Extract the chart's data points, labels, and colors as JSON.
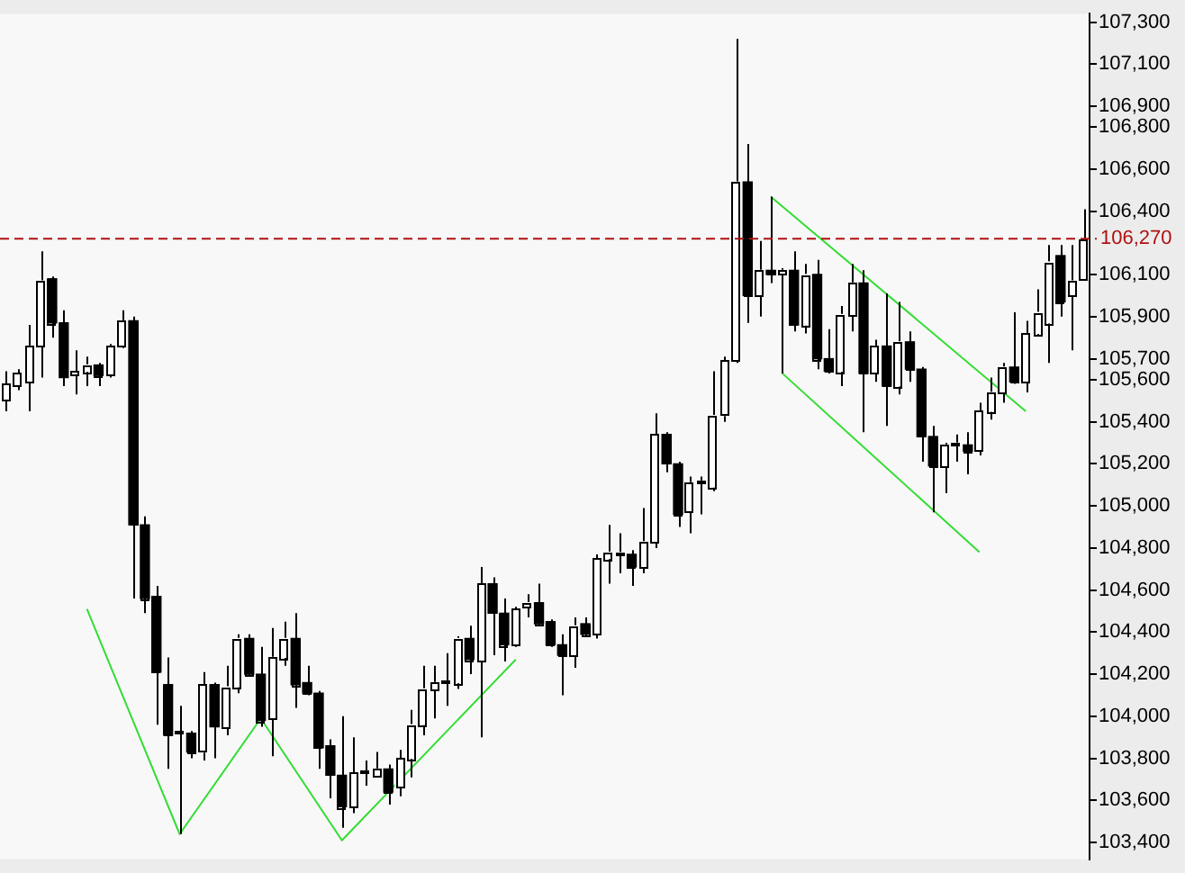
{
  "chart_data": {
    "type": "candlestick",
    "color": "#000000",
    "colors": [
      "#ffffff",
      "#ffffff",
      "#ffffff",
      "#ffffff",
      "#000000",
      "#000000",
      "#ffffff",
      "#ffffff",
      "#000000",
      "#ffffff",
      "#ffffff",
      "#000000",
      "#000000",
      "#000000",
      "#000000",
      "#ffffff",
      "#000000",
      "#ffffff",
      "#000000",
      "#ffffff",
      "#ffffff",
      "#000000",
      "#000000",
      "#ffffff",
      "#ffffff",
      "#000000",
      "#000000",
      "#000000",
      "#000000",
      "#000000",
      "#ffffff",
      "#ffffff",
      "#ffffff",
      "#000000",
      "#ffffff",
      "#ffffff",
      "#ffffff",
      "#ffffff",
      "#ffffff",
      "#ffffff",
      "#000000",
      "#ffffff",
      "#000000",
      "#000000",
      "#ffffff",
      "#ffffff",
      "#000000",
      "#000000",
      "#000000",
      "#ffffff",
      "#000000",
      "#ffffff",
      "#ffffff",
      "#ffffff",
      "#000000",
      "#ffffff",
      "#ffffff",
      "#000000",
      "#000000",
      "#ffffff",
      "#ffffff",
      "#ffffff",
      "#ffffff",
      "#ffffff",
      "#000000",
      "#ffffff",
      "#000000",
      "#ffffff",
      "#000000",
      "#ffffff",
      "#000000",
      "#000000",
      "#ffffff",
      "#ffffff",
      "#000000",
      "#ffffff",
      "#000000",
      "#ffffff",
      "#000000",
      "#000000",
      "#000000",
      "#ffffff",
      "#ffffff",
      "#000000",
      "#ffffff",
      "#ffffff",
      "#ffffff",
      "#000000",
      "#ffffff",
      "#ffffff",
      "#ffffff",
      "#000000",
      "#ffffff",
      "#ffffff"
    ],
    "categories": [
      null,
      null,
      null,
      null,
      null,
      null,
      null,
      null,
      null,
      null,
      null,
      null,
      null,
      null,
      null,
      null,
      null,
      null,
      null,
      null,
      null,
      null,
      null,
      null,
      null,
      null,
      null,
      null,
      null,
      null,
      null,
      null,
      null,
      null,
      null,
      null,
      null,
      null,
      null,
      null,
      null,
      null,
      null,
      null,
      null,
      null,
      null,
      null,
      null,
      null,
      null,
      null,
      null,
      null,
      null,
      null,
      null,
      null,
      null,
      null,
      null,
      null,
      null,
      null,
      null,
      null,
      null,
      null,
      null,
      null,
      null,
      null,
      null,
      null,
      null,
      null,
      null,
      null,
      null,
      null,
      null,
      null,
      null,
      null,
      null,
      null,
      null,
      null,
      null,
      null,
      null,
      null,
      null,
      null
    ],
    "ohlc": [
      [
        105500,
        105640,
        105450,
        105580
      ],
      [
        105570,
        105650,
        105550,
        105630
      ],
      [
        105590,
        105860,
        105450,
        105760
      ],
      [
        105760,
        106210,
        105610,
        106070
      ],
      [
        106080,
        106090,
        105800,
        105870
      ],
      [
        105870,
        105930,
        105570,
        105610
      ],
      [
        105620,
        105740,
        105530,
        105640
      ],
      [
        105640,
        105710,
        105570,
        105670
      ],
      [
        105670,
        105680,
        105570,
        105620
      ],
      [
        105620,
        105770,
        105610,
        105760
      ],
      [
        105760,
        105930,
        105750,
        105880
      ],
      [
        105880,
        105900,
        104560,
        104910
      ],
      [
        104910,
        104950,
        104490,
        104560
      ],
      [
        104570,
        104620,
        103960,
        104210
      ],
      [
        104150,
        104280,
        103750,
        103910
      ],
      [
        103920,
        104050,
        103440,
        103920
      ],
      [
        103920,
        103930,
        103800,
        103830
      ],
      [
        103830,
        104210,
        103790,
        104150
      ],
      [
        104150,
        104160,
        103800,
        103950
      ],
      [
        103950,
        104240,
        103910,
        104140
      ],
      [
        104140,
        104390,
        104110,
        104370
      ],
      [
        104370,
        104390,
        104190,
        104200
      ],
      [
        104200,
        104330,
        103950,
        103980
      ],
      [
        103990,
        104420,
        103810,
        104280
      ],
      [
        104280,
        104450,
        104240,
        104370
      ],
      [
        104370,
        104490,
        104040,
        104150
      ],
      [
        104160,
        104240,
        104100,
        104110
      ],
      [
        104110,
        104120,
        103750,
        103850
      ],
      [
        103860,
        103890,
        103610,
        103720
      ],
      [
        103720,
        104000,
        103470,
        103570
      ],
      [
        103570,
        103900,
        103540,
        103730
      ],
      [
        103730,
        103790,
        103670,
        103730
      ],
      [
        103720,
        103830,
        103710,
        103750
      ],
      [
        103750,
        103770,
        103580,
        103640
      ],
      [
        103660,
        103840,
        103620,
        103800
      ],
      [
        103800,
        104030,
        103710,
        103960
      ],
      [
        103960,
        104240,
        103910,
        104130
      ],
      [
        104130,
        104240,
        103990,
        104160
      ],
      [
        104160,
        104300,
        104050,
        104160
      ],
      [
        104160,
        104380,
        104130,
        104370
      ],
      [
        104370,
        104430,
        104200,
        104270
      ],
      [
        104260,
        104710,
        103900,
        104630
      ],
      [
        104630,
        104660,
        104290,
        104490
      ],
      [
        104490,
        104560,
        104260,
        104340
      ],
      [
        104340,
        104520,
        104330,
        104510
      ],
      [
        104520,
        104580,
        104470,
        104540
      ],
      [
        104540,
        104630,
        104430,
        104440
      ],
      [
        104450,
        104460,
        104330,
        104340
      ],
      [
        104340,
        104390,
        104100,
        104290
      ],
      [
        104290,
        104470,
        104230,
        104430
      ],
      [
        104440,
        104470,
        104380,
        104390
      ],
      [
        104390,
        104770,
        104370,
        104750
      ],
      [
        104750,
        104910,
        104630,
        104780
      ],
      [
        104770,
        104870,
        104680,
        104770
      ],
      [
        104770,
        104790,
        104620,
        104710
      ],
      [
        104710,
        104990,
        104680,
        104830
      ],
      [
        104830,
        105440,
        104800,
        105340
      ],
      [
        105340,
        105350,
        105160,
        105200
      ],
      [
        105200,
        105210,
        104900,
        104960
      ],
      [
        104970,
        105140,
        104870,
        105110
      ],
      [
        105110,
        105140,
        104960,
        105110
      ],
      [
        105090,
        105640,
        105070,
        105430
      ],
      [
        105430,
        105710,
        105400,
        105690
      ],
      [
        105690,
        107220,
        105680,
        106540
      ],
      [
        106540,
        106720,
        105870,
        106000
      ],
      [
        106000,
        106260,
        105900,
        106120
      ],
      [
        106120,
        106470,
        106060,
        106100
      ],
      [
        106100,
        106130,
        105630,
        106120
      ],
      [
        106120,
        106210,
        105830,
        105860
      ],
      [
        105860,
        106150,
        105820,
        106100
      ],
      [
        106100,
        106170,
        105650,
        105700
      ],
      [
        105700,
        105840,
        105630,
        105640
      ],
      [
        105640,
        105950,
        105570,
        105910
      ],
      [
        105910,
        106150,
        105830,
        106060
      ],
      [
        106060,
        106120,
        105350,
        105630
      ],
      [
        105630,
        105790,
        105590,
        105760
      ],
      [
        105760,
        106010,
        105380,
        105570
      ],
      [
        105570,
        105970,
        105530,
        105780
      ],
      [
        105780,
        105830,
        105590,
        105650
      ],
      [
        105650,
        105660,
        105210,
        105330
      ],
      [
        105330,
        105380,
        104970,
        105190
      ],
      [
        105190,
        105300,
        105060,
        105290
      ],
      [
        105290,
        105340,
        105210,
        105290
      ],
      [
        105290,
        105350,
        105150,
        105260
      ],
      [
        105260,
        105490,
        105240,
        105450
      ],
      [
        105450,
        105610,
        105410,
        105540
      ],
      [
        105540,
        105680,
        105490,
        105660
      ],
      [
        105660,
        105920,
        105580,
        105590
      ],
      [
        105590,
        105880,
        105540,
        105820
      ],
      [
        105820,
        106030,
        105810,
        105920
      ],
      [
        105870,
        106240,
        105680,
        106160
      ],
      [
        106190,
        106240,
        105900,
        105970
      ],
      [
        106000,
        106240,
        105740,
        106070
      ],
      [
        106080,
        106410,
        106070,
        106270
      ]
    ],
    "series": [
      {
        "type": "line",
        "color": "#33dd33",
        "values": [
          null,
          null,
          null,
          null,
          null,
          null,
          null,
          104510,
          null,
          null,
          null,
          null,
          null,
          null,
          null,
          103440,
          null,
          null,
          null,
          null,
          null,
          null,
          103990,
          null,
          null,
          null,
          null,
          null,
          null,
          103410,
          null,
          null,
          null,
          null,
          null,
          null,
          null,
          null,
          null,
          null,
          null,
          null,
          null,
          null,
          104270,
          null,
          null,
          null,
          null,
          null,
          null,
          null,
          null,
          null,
          null,
          null,
          null,
          null,
          null,
          null,
          null,
          null,
          null,
          null,
          null,
          null,
          null,
          null,
          null,
          null,
          null,
          null,
          null,
          null,
          null,
          null,
          null,
          null,
          null,
          null,
          null,
          null,
          null,
          null,
          null,
          null,
          null,
          null,
          null,
          null,
          null,
          null,
          null,
          null
        ]
      },
      {
        "type": "line",
        "color": "#33dd33",
        "values": [
          null,
          null,
          null,
          null,
          null,
          null,
          null,
          null,
          null,
          null,
          null,
          null,
          null,
          null,
          null,
          null,
          null,
          null,
          null,
          null,
          null,
          null,
          null,
          null,
          null,
          null,
          null,
          null,
          null,
          null,
          null,
          null,
          null,
          null,
          null,
          null,
          null,
          null,
          null,
          null,
          null,
          null,
          null,
          null,
          null,
          null,
          null,
          null,
          null,
          null,
          null,
          null,
          null,
          null,
          null,
          null,
          null,
          null,
          null,
          null,
          null,
          null,
          null,
          null,
          null,
          null,
          106470,
          null,
          null,
          null,
          null,
          null,
          null,
          null,
          null,
          null,
          null,
          null,
          null,
          null,
          null,
          null,
          null,
          null,
          null,
          null,
          null,
          null,
          105450,
          null,
          null,
          null,
          null,
          null
        ]
      },
      {
        "type": "line",
        "color": "#33dd33",
        "values": [
          null,
          null,
          null,
          null,
          null,
          null,
          null,
          null,
          null,
          null,
          null,
          null,
          null,
          null,
          null,
          null,
          null,
          null,
          null,
          null,
          null,
          null,
          null,
          null,
          null,
          null,
          null,
          null,
          null,
          null,
          null,
          null,
          null,
          null,
          null,
          null,
          null,
          null,
          null,
          null,
          null,
          null,
          null,
          null,
          null,
          null,
          null,
          null,
          null,
          null,
          null,
          null,
          null,
          null,
          null,
          null,
          null,
          null,
          null,
          null,
          null,
          null,
          null,
          null,
          null,
          null,
          null,
          105630,
          null,
          null,
          null,
          null,
          null,
          null,
          null,
          null,
          null,
          null,
          null,
          null,
          null,
          null,
          null,
          null,
          104780,
          null,
          null,
          null,
          null,
          null,
          null,
          null,
          null,
          null
        ]
      }
    ],
    "ylim": [
      103320,
      107340
    ],
    "yticks": [
      {
        "value": 107300,
        "label": "107,300"
      },
      {
        "value": 107100,
        "label": "107,100"
      },
      {
        "value": 106900,
        "label": "106,900"
      },
      {
        "value": 106800,
        "label": "106,800"
      },
      {
        "value": 106600,
        "label": "106,600"
      },
      {
        "value": 106400,
        "label": "106,400"
      },
      {
        "value": 106100,
        "label": "106,100"
      },
      {
        "value": 105900,
        "label": "105,900"
      },
      {
        "value": 105700,
        "label": "105,700"
      },
      {
        "value": 105600,
        "label": "105,600"
      },
      {
        "value": 105400,
        "label": "105,400"
      },
      {
        "value": 105200,
        "label": "105,200"
      },
      {
        "value": 105000,
        "label": "105,000"
      },
      {
        "value": 104800,
        "label": "104,800"
      },
      {
        "value": 104600,
        "label": "104,600"
      },
      {
        "value": 104400,
        "label": "104,400"
      },
      {
        "value": 104200,
        "label": "104,200"
      },
      {
        "value": 104000,
        "label": "104,000"
      },
      {
        "value": 103800,
        "label": "103,800"
      },
      {
        "value": 103600,
        "label": "103,600"
      },
      {
        "value": 103400,
        "label": "103,400"
      }
    ],
    "ref_lines": [
      {
        "axis": "y",
        "value": 106270,
        "label": "106,270",
        "color": "#b01010",
        "line_style": "dashed"
      }
    ],
    "tick_labels": "y"
  }
}
